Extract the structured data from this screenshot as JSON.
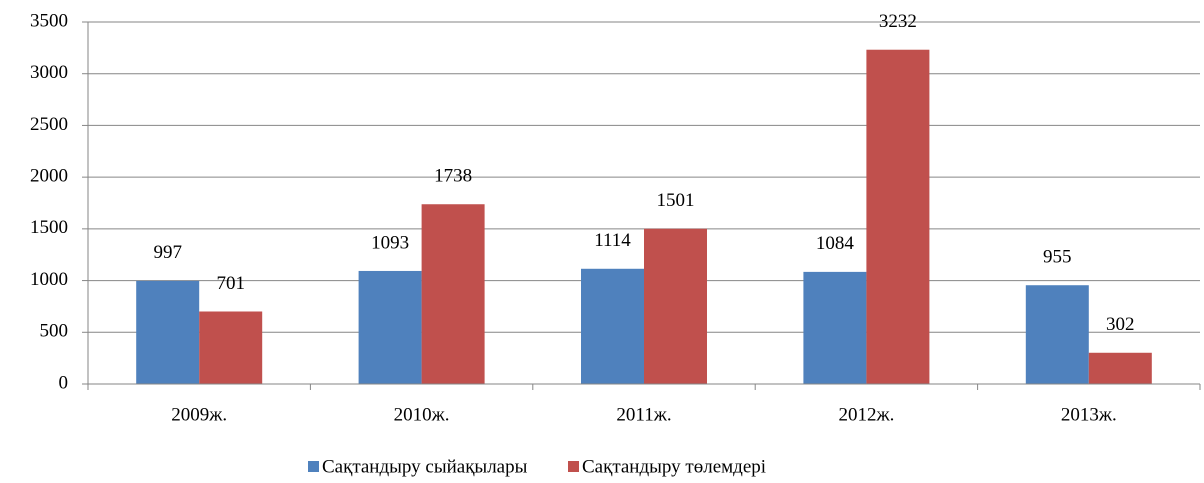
{
  "chart_data": {
    "type": "bar",
    "categories": [
      "2009ж.",
      "2010ж.",
      "2011ж.",
      "2012ж.",
      "2013ж."
    ],
    "series": [
      {
        "name": "Сақтандыру сыйақылары",
        "color": "#4f81bd",
        "values": [
          997,
          1093,
          1114,
          1084,
          955
        ]
      },
      {
        "name": "Сақтандыру төлемдері",
        "color": "#c0504d",
        "values": [
          701,
          1738,
          1501,
          3232,
          302
        ]
      }
    ],
    "ylim": [
      0,
      3500
    ],
    "yticks": [
      0,
      500,
      1000,
      1500,
      2000,
      2500,
      3000,
      3500
    ],
    "grid": true,
    "legend": "bottom"
  }
}
